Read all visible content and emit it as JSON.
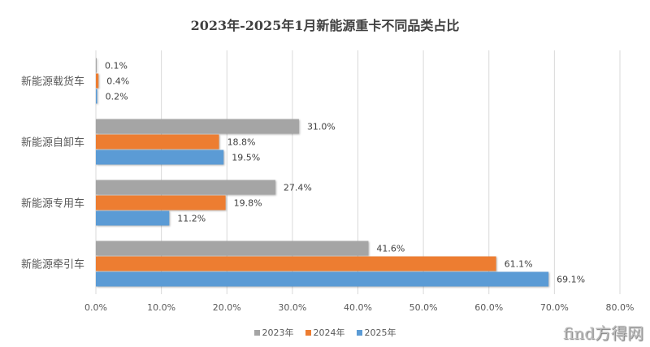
{
  "chart_data": {
    "type": "bar",
    "orientation": "horizontal",
    "title": "2023年-2025年1月新能源重卡不同品类占比",
    "categories": [
      "新能源载货车",
      "新能源自卸车",
      "新能源专用车",
      "新能源牵引车"
    ],
    "series": [
      {
        "name": "2023年",
        "color": "#a5a5a5",
        "values": [
          0.1,
          31.0,
          27.4,
          41.6
        ],
        "labels": [
          "0.1%",
          "31.0%",
          "27.4%",
          "41.6%"
        ]
      },
      {
        "name": "2024年",
        "color": "#ed7d31",
        "values": [
          0.4,
          18.8,
          19.8,
          61.1
        ],
        "labels": [
          "0.4%",
          "18.8%",
          "19.8%",
          "61.1%"
        ]
      },
      {
        "name": "2025年",
        "color": "#5b9bd5",
        "values": [
          0.2,
          19.5,
          11.2,
          69.1
        ],
        "labels": [
          "0.2%",
          "19.5%",
          "11.2%",
          "69.1%"
        ]
      }
    ],
    "xlim": [
      0,
      80
    ],
    "xticks": [
      "0.0%",
      "10.0%",
      "20.0%",
      "30.0%",
      "40.0%",
      "50.0%",
      "60.0%",
      "70.0%",
      "80.0%"
    ],
    "grid": true,
    "legend": "bottom"
  },
  "watermark": "find方得网"
}
